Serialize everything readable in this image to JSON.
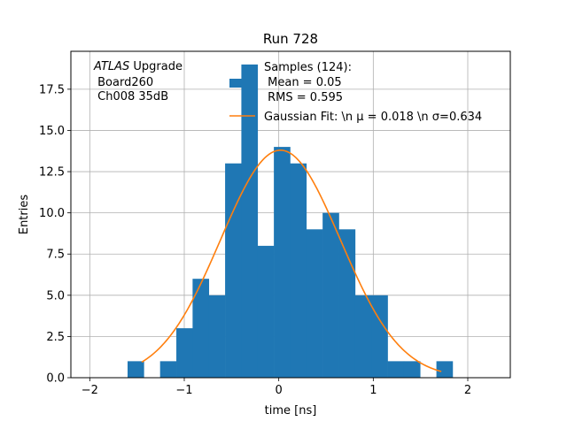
{
  "chart_data": {
    "type": "bar",
    "title": "Run 728",
    "xlabel": "time [ns]",
    "ylabel": "Entries",
    "xlim": [
      -2.2,
      2.45
    ],
    "ylim": [
      0,
      19.8
    ],
    "grid": true,
    "x_ticks": [
      -2,
      -1,
      0,
      1,
      2
    ],
    "x_tick_labels": [
      "−2",
      "−1",
      "0",
      "1",
      "2"
    ],
    "y_ticks": [
      0,
      2.5,
      5,
      7.5,
      10,
      12.5,
      15,
      17.5
    ],
    "y_tick_labels": [
      "0.0",
      "2.5",
      "5.0",
      "7.5",
      "10.0",
      "12.5",
      "15.0",
      "17.5"
    ],
    "bins": {
      "edges": [
        -1.6,
        -1.428,
        -1.256,
        -1.084,
        -0.912,
        -0.74,
        -0.568,
        -0.396,
        -0.224,
        -0.052,
        0.12,
        0.292,
        0.464,
        0.636,
        0.808,
        0.98,
        1.152,
        1.324,
        1.496,
        1.668,
        1.84
      ],
      "counts": [
        1,
        0,
        1,
        3,
        6,
        5,
        13,
        19,
        8,
        14,
        13,
        9,
        10,
        9,
        5,
        5,
        1,
        1,
        0,
        1
      ]
    },
    "histogram_color": "#1f77b4",
    "fit": {
      "label": "Gaussian Fit: \\n μ = 0.018 \\n σ=0.634",
      "amplitude": 13.8,
      "mu": 0.018,
      "sigma": 0.634,
      "x_range": [
        -1.45,
        1.72
      ],
      "color": "#ff7f0e"
    },
    "annotation": {
      "atlas": "ATLAS",
      "upgrade": " Upgrade",
      "board": " Board260",
      "channel": " Ch008 35dB"
    },
    "legend": {
      "placement": "top-right",
      "histogram_line1": "Samples (124):",
      "histogram_line2": " Mean = 0.05",
      "histogram_line3": " RMS = 0.595"
    }
  }
}
